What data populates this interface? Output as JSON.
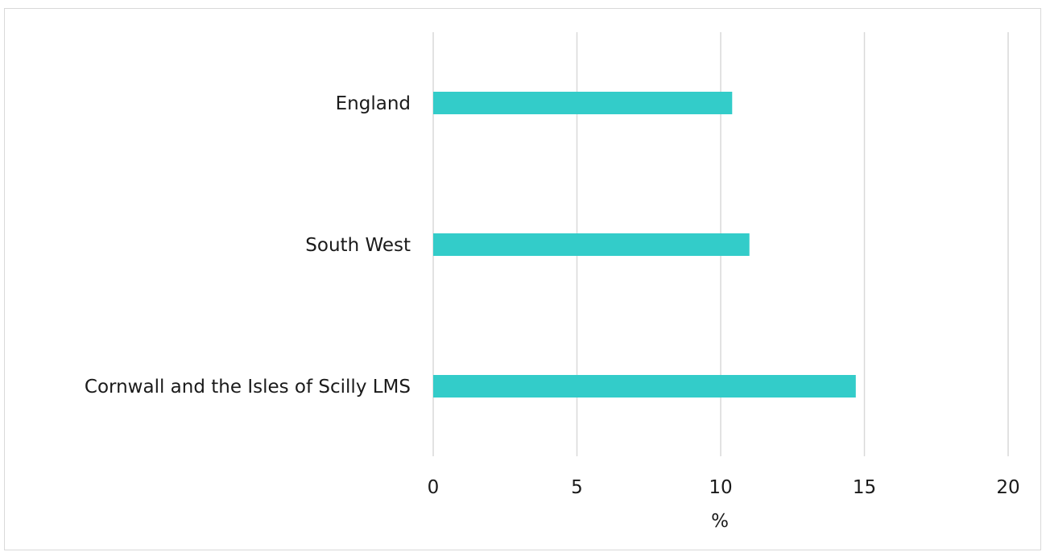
{
  "chart_data": {
    "type": "bar",
    "orientation": "horizontal",
    "title": "",
    "xlabel": "%",
    "ylabel": "",
    "categories": [
      "England",
      "South West",
      "Cornwall and the Isles of Scilly LMS"
    ],
    "values": [
      10.4,
      11.0,
      14.7
    ],
    "xlim": [
      0,
      20
    ],
    "x_ticks": [
      0,
      5,
      10,
      15,
      20
    ],
    "grid": "vertical",
    "legend": "none",
    "bar_color": "#33ccc9",
    "grid_color": "#d9d9d9"
  }
}
